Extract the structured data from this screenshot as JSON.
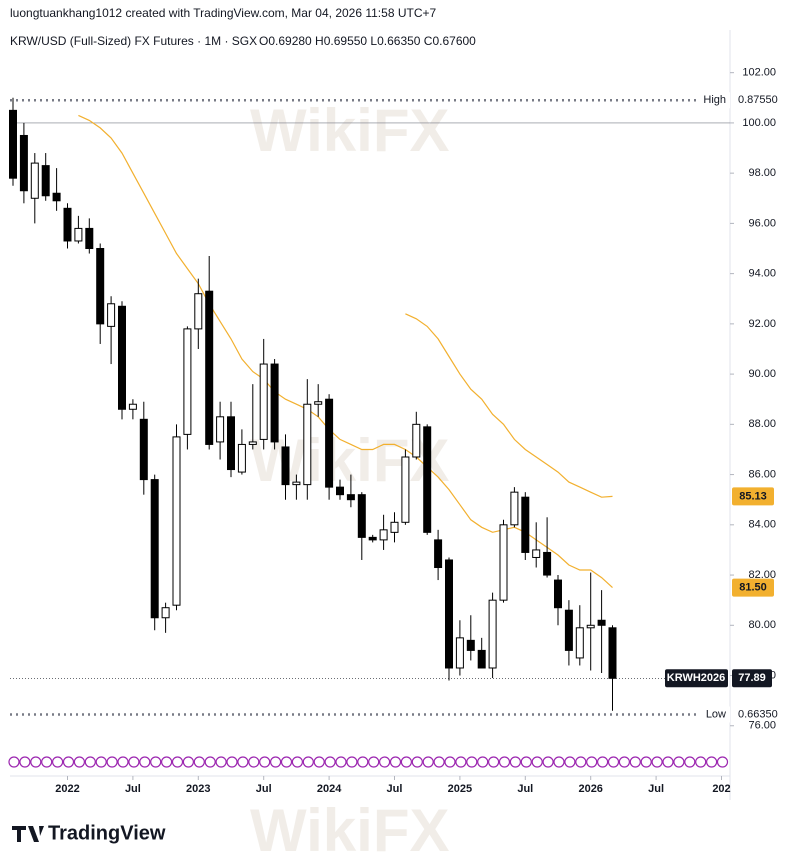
{
  "header": {
    "credit": "luongtuankhang1012 created with TradingView.com, Mar 04, 2026 11:58 UTC+7",
    "instrument": "KRW/USD (Full-Sized) FX Futures · 1M · SGX",
    "ohlc": "O0.69280 H0.69550 L0.66350 C0.67600"
  },
  "watermark": "WikiFX",
  "footer": {
    "logo": "TradingView"
  },
  "chart_data": {
    "type": "candlestick",
    "x": [
      "2021-08",
      "2021-09",
      "2021-10",
      "2021-11",
      "2021-12",
      "2022-01",
      "2022-02",
      "2022-03",
      "2022-04",
      "2022-05",
      "2022-06",
      "2022-07",
      "2022-08",
      "2022-09",
      "2022-10",
      "2022-11",
      "2022-12",
      "2023-01",
      "2023-02",
      "2023-03",
      "2023-04",
      "2023-05",
      "2023-06",
      "2023-07",
      "2023-08",
      "2023-09",
      "2023-10",
      "2023-11",
      "2023-12",
      "2024-01",
      "2024-02",
      "2024-03",
      "2024-04",
      "2024-05",
      "2024-06",
      "2024-07",
      "2024-08",
      "2024-09",
      "2024-10",
      "2024-11",
      "2024-12",
      "2025-01",
      "2025-02",
      "2025-03",
      "2025-04",
      "2025-05",
      "2025-06",
      "2025-07",
      "2025-08",
      "2025-09",
      "2025-10",
      "2025-11",
      "2025-12",
      "2026-01",
      "2026-02",
      "2026-03"
    ],
    "open": [
      100.5,
      99.5,
      97.0,
      98.3,
      97.2,
      96.6,
      95.3,
      95.8,
      95.0,
      91.9,
      92.7,
      88.6,
      88.2,
      85.8,
      80.3,
      80.8,
      87.6,
      91.8,
      93.3,
      87.3,
      88.3,
      86.1,
      87.2,
      87.4,
      90.4,
      87.1,
      85.6,
      85.6,
      88.8,
      89.0,
      85.5,
      85.2,
      85.2,
      83.5,
      83.4,
      83.7,
      84.1,
      86.7,
      87.9,
      83.4,
      82.6,
      78.3,
      79.4,
      79.0,
      78.3,
      81.0,
      84.0,
      85.1,
      82.7,
      82.9,
      81.8,
      80.6,
      78.7,
      79.9,
      80.2,
      79.9
    ],
    "high": [
      101.0,
      100.0,
      98.8,
      98.8,
      98.2,
      96.8,
      96.3,
      96.2,
      95.2,
      93.1,
      92.9,
      89.0,
      88.9,
      86.0,
      80.9,
      88.0,
      91.9,
      93.8,
      94.7,
      88.9,
      88.9,
      87.8,
      89.6,
      91.4,
      90.6,
      87.6,
      86.0,
      89.8,
      89.6,
      89.2,
      85.8,
      86.0,
      85.3,
      83.6,
      84.4,
      84.5,
      87.0,
      88.5,
      88.0,
      83.8,
      82.7,
      80.2,
      80.4,
      79.5,
      81.3,
      84.2,
      85.5,
      85.3,
      84.1,
      84.3,
      82.0,
      81.0,
      80.8,
      82.1,
      81.4,
      80.0
    ],
    "low": [
      97.5,
      96.8,
      96.0,
      96.9,
      96.5,
      95.0,
      95.2,
      94.8,
      91.2,
      90.4,
      88.2,
      88.2,
      85.2,
      79.8,
      79.7,
      80.6,
      87.0,
      91.0,
      87.0,
      86.6,
      85.9,
      86.0,
      87.0,
      87.0,
      87.0,
      85.0,
      85.0,
      85.0,
      88.3,
      85.0,
      85.0,
      84.7,
      82.6,
      83.3,
      83.0,
      83.3,
      84.0,
      86.6,
      83.6,
      81.8,
      77.8,
      78.0,
      78.6,
      78.3,
      77.9,
      80.9,
      83.9,
      82.6,
      82.3,
      81.9,
      80.0,
      78.4,
      78.4,
      78.2,
      78.1,
      76.6
    ],
    "close": [
      97.8,
      97.3,
      98.4,
      97.1,
      96.9,
      95.3,
      95.8,
      95.0,
      92.0,
      92.8,
      88.6,
      88.8,
      85.8,
      80.3,
      80.7,
      87.5,
      91.8,
      93.2,
      87.2,
      88.3,
      86.2,
      87.2,
      87.3,
      90.4,
      87.3,
      85.6,
      85.7,
      88.8,
      88.9,
      85.5,
      85.2,
      85.0,
      83.5,
      83.4,
      83.8,
      84.1,
      86.7,
      88.0,
      83.7,
      82.3,
      78.3,
      79.5,
      79.0,
      78.3,
      81.0,
      84.0,
      85.3,
      82.9,
      83.0,
      82.0,
      80.7,
      79.0,
      79.9,
      80.0,
      80.0,
      77.89
    ],
    "series": [
      {
        "color": "#f2b02f",
        "values": [
          null,
          null,
          null,
          null,
          null,
          null,
          100.3,
          100.1,
          99.8,
          99.4,
          98.8,
          98.0,
          97.2,
          96.4,
          95.6,
          94.8,
          94.2,
          93.6,
          92.8,
          92.1,
          91.4,
          90.6,
          90.1,
          89.8,
          89.3,
          89.0,
          88.8,
          88.6,
          88.3,
          87.8,
          87.4,
          87.2,
          87.0,
          87.0,
          87.2,
          87.2,
          87.0,
          86.7,
          86.3,
          85.9,
          85.4,
          84.8,
          84.2,
          83.9,
          83.7,
          83.8,
          83.9,
          83.7,
          83.4,
          83.1,
          82.8,
          82.4,
          82.2,
          82.2,
          81.9,
          81.5
        ],
        "value_labels": {
          "55": "81.50"
        }
      },
      {
        "color": "#f2b02f",
        "values": [
          null,
          null,
          null,
          null,
          null,
          null,
          null,
          null,
          null,
          null,
          null,
          null,
          null,
          null,
          null,
          null,
          null,
          null,
          null,
          null,
          null,
          null,
          null,
          null,
          null,
          null,
          null,
          null,
          null,
          null,
          null,
          null,
          null,
          null,
          null,
          null,
          92.4,
          92.2,
          91.9,
          91.4,
          90.7,
          90.0,
          89.4,
          89.0,
          88.4,
          88.0,
          87.4,
          87.0,
          86.7,
          86.4,
          86.1,
          85.7,
          85.5,
          85.3,
          85.1,
          85.13
        ]
      }
    ],
    "up_color": "#ffffff",
    "down_color": "#000000",
    "ylim": [
      74,
      103.5
    ],
    "yticks": [
      {
        "value": 76,
        "label": "76.00"
      },
      {
        "value": 78,
        "label": "78.00"
      },
      {
        "value": 80,
        "label": "80.00"
      },
      {
        "value": 82,
        "label": "82.00"
      },
      {
        "value": 84,
        "label": "84.00"
      },
      {
        "value": 86,
        "label": "86.00"
      },
      {
        "value": 88,
        "label": "88.00"
      },
      {
        "value": 90,
        "label": "90.00"
      },
      {
        "value": 92,
        "label": "92.00"
      },
      {
        "value": 94,
        "label": "94.00"
      },
      {
        "value": 96,
        "label": "96.00"
      },
      {
        "value": 98,
        "label": "98.00"
      },
      {
        "value": 100,
        "label": "100.00"
      },
      {
        "value": 102,
        "label": "102.00"
      }
    ],
    "xticks": [
      {
        "value": "2022-01",
        "label": "2022"
      },
      {
        "value": "2022-07",
        "label": "Jul"
      },
      {
        "value": "2023-01",
        "label": "2023"
      },
      {
        "value": "2023-07",
        "label": "Jul"
      },
      {
        "value": "2024-01",
        "label": "2024"
      },
      {
        "value": "2024-07",
        "label": "Jul"
      },
      {
        "value": "2025-01",
        "label": "2025"
      },
      {
        "value": "2025-07",
        "label": "Jul"
      },
      {
        "value": "2026-01",
        "label": "2026"
      },
      {
        "value": "2026-07",
        "label": "Jul"
      },
      {
        "value": "2027-01",
        "label": "202"
      }
    ],
    "reference_line": 100,
    "high_marker": {
      "name": "High",
      "text": "0.87550",
      "level": 100.9
    },
    "low_marker": {
      "name": "Low",
      "text": "0.66350",
      "level": 76.45
    },
    "last_price": {
      "symbol": "KRWH2026",
      "value": 77.89
    }
  }
}
